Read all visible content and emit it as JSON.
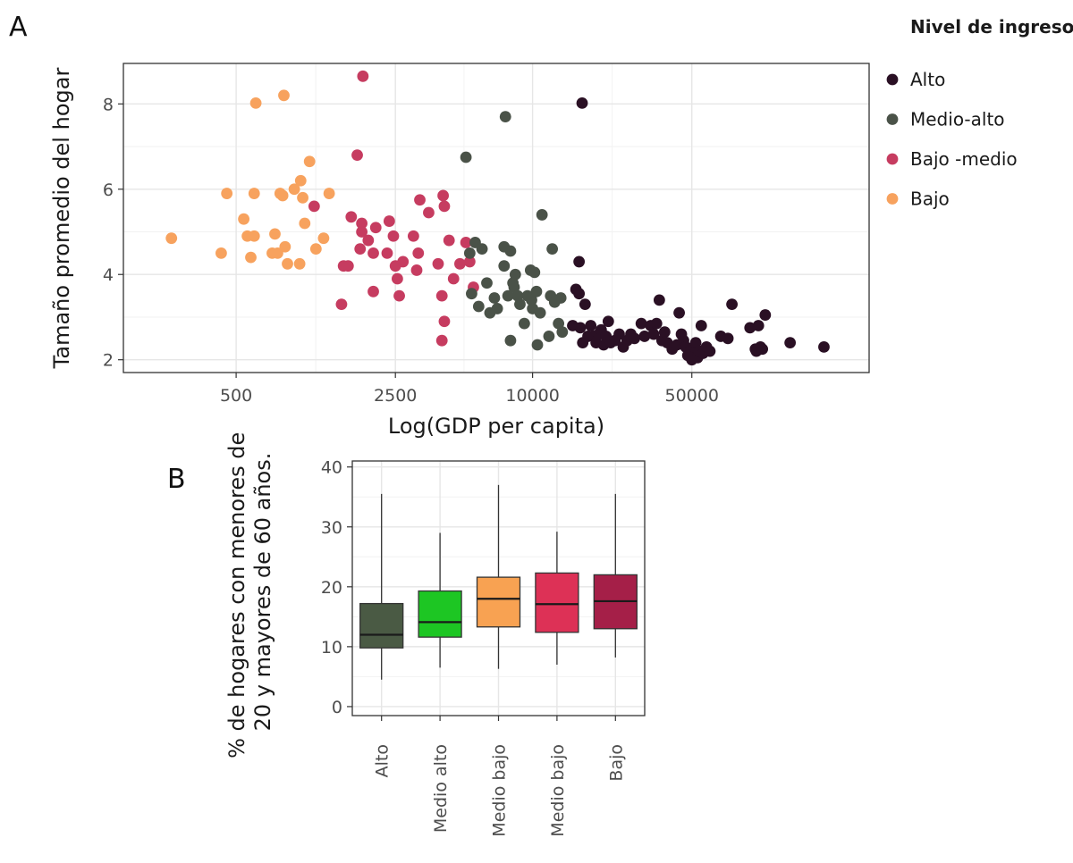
{
  "chart_data": [
    {
      "panel": "A",
      "type": "scatter",
      "title": "",
      "xlabel": "Log(GDP per capita)",
      "ylabel": "Tamaño promedio del hogar",
      "x_scale": "log",
      "x_ticks": [
        500,
        2500,
        10000,
        50000
      ],
      "x_tick_labels": [
        "500",
        "2500",
        "10000",
        "50000"
      ],
      "y_ticks": [
        2,
        4,
        6,
        8
      ],
      "y_tick_labels": [
        "2",
        "4",
        "6",
        "8"
      ],
      "xlim": [
        160,
        300000
      ],
      "ylim": [
        1.7,
        8.95
      ],
      "grid": true,
      "legend": {
        "title": "Nivel de ingreso",
        "position": "right",
        "entries": [
          {
            "label": "Alto",
            "color": "#2a1024"
          },
          {
            "label": "Medio-alto",
            "color": "#4a5248"
          },
          {
            "label": "Bajo -medio",
            "color": "#c63c60"
          },
          {
            "label": "Bajo",
            "color": "#f7a25e"
          }
        ]
      },
      "series": [
        {
          "name": "Bajo",
          "color": "#f7a25e",
          "points": [
            [
              260,
              4.85
            ],
            [
              430,
              4.5
            ],
            [
              455,
              5.9
            ],
            [
              540,
              5.3
            ],
            [
              560,
              4.9
            ],
            [
              580,
              4.4
            ],
            [
              600,
              4.9
            ],
            [
              600,
              5.9
            ],
            [
              610,
              8.02
            ],
            [
              720,
              4.5
            ],
            [
              740,
              4.95
            ],
            [
              760,
              4.5
            ],
            [
              800,
              5.85
            ],
            [
              780,
              5.9
            ],
            [
              810,
              8.2
            ],
            [
              820,
              4.65
            ],
            [
              840,
              4.25
            ],
            [
              900,
              6.0
            ],
            [
              950,
              4.25
            ],
            [
              960,
              6.2
            ],
            [
              980,
              5.8
            ],
            [
              1000,
              5.2
            ],
            [
              1050,
              6.65
            ],
            [
              1120,
              4.6
            ],
            [
              1210,
              4.85
            ],
            [
              1280,
              5.9
            ]
          ]
        },
        {
          "name": "Bajo -medio",
          "color": "#c63c60",
          "points": [
            [
              1100,
              5.6
            ],
            [
              1450,
              3.3
            ],
            [
              1480,
              4.2
            ],
            [
              1550,
              4.2
            ],
            [
              1600,
              5.35
            ],
            [
              1700,
              6.8
            ],
            [
              1750,
              4.6
            ],
            [
              1780,
              5.2
            ],
            [
              1800,
              8.65
            ],
            [
              1780,
              5.0
            ],
            [
              1900,
              4.8
            ],
            [
              2000,
              4.5
            ],
            [
              2000,
              3.6
            ],
            [
              2050,
              5.1
            ],
            [
              2300,
              4.5
            ],
            [
              2350,
              5.25
            ],
            [
              2450,
              4.9
            ],
            [
              2500,
              4.2
            ],
            [
              2550,
              3.9
            ],
            [
              2600,
              3.5
            ],
            [
              2700,
              4.3
            ],
            [
              3000,
              4.9
            ],
            [
              3100,
              4.1
            ],
            [
              3150,
              4.5
            ],
            [
              3200,
              5.75
            ],
            [
              3500,
              5.45
            ],
            [
              3850,
              4.25
            ],
            [
              4000,
              3.5
            ],
            [
              4050,
              5.85
            ],
            [
              4100,
              5.6
            ],
            [
              4100,
              2.9
            ],
            [
              4000,
              2.45
            ],
            [
              4300,
              4.8
            ],
            [
              4500,
              3.9
            ],
            [
              4800,
              4.25
            ],
            [
              5100,
              4.75
            ],
            [
              5300,
              4.3
            ],
            [
              5500,
              3.7
            ]
          ]
        },
        {
          "name": "Medio-alto",
          "color": "#4a5248",
          "points": [
            [
              5100,
              6.75
            ],
            [
              5300,
              4.5
            ],
            [
              5400,
              3.55
            ],
            [
              5600,
              4.75
            ],
            [
              5800,
              3.25
            ],
            [
              6000,
              4.6
            ],
            [
              6300,
              3.8
            ],
            [
              6500,
              3.1
            ],
            [
              6800,
              3.45
            ],
            [
              7000,
              3.2
            ],
            [
              7500,
              4.65
            ],
            [
              7500,
              4.2
            ],
            [
              7600,
              7.7
            ],
            [
              7800,
              3.5
            ],
            [
              8000,
              4.55
            ],
            [
              8000,
              2.45
            ],
            [
              8200,
              3.8
            ],
            [
              8300,
              3.7
            ],
            [
              8400,
              4.0
            ],
            [
              8600,
              3.5
            ],
            [
              8800,
              3.3
            ],
            [
              9200,
              2.85
            ],
            [
              9500,
              3.5
            ],
            [
              9800,
              4.1
            ],
            [
              9900,
              3.4
            ],
            [
              10000,
              3.2
            ],
            [
              10200,
              4.05
            ],
            [
              10400,
              3.6
            ],
            [
              10800,
              3.1
            ],
            [
              11000,
              5.4
            ],
            [
              10500,
              2.35
            ],
            [
              11800,
              2.55
            ],
            [
              12000,
              3.5
            ],
            [
              12500,
              3.35
            ],
            [
              12200,
              4.6
            ],
            [
              13000,
              2.85
            ],
            [
              13300,
              3.45
            ],
            [
              13500,
              2.65
            ]
          ]
        },
        {
          "name": "Alto",
          "color": "#2a1024",
          "points": [
            [
              15000,
              2.8
            ],
            [
              15500,
              3.65
            ],
            [
              16000,
              3.55
            ],
            [
              16000,
              4.3
            ],
            [
              16500,
              8.02
            ],
            [
              16200,
              2.75
            ],
            [
              16600,
              2.4
            ],
            [
              17000,
              3.3
            ],
            [
              17500,
              2.55
            ],
            [
              18000,
              2.8
            ],
            [
              18500,
              2.55
            ],
            [
              19000,
              2.4
            ],
            [
              19500,
              2.6
            ],
            [
              20000,
              2.7
            ],
            [
              20500,
              2.35
            ],
            [
              21000,
              2.55
            ],
            [
              21500,
              2.9
            ],
            [
              22000,
              2.4
            ],
            [
              23000,
              2.45
            ],
            [
              24000,
              2.6
            ],
            [
              25000,
              2.3
            ],
            [
              26000,
              2.45
            ],
            [
              27000,
              2.6
            ],
            [
              28000,
              2.5
            ],
            [
              30000,
              2.85
            ],
            [
              31000,
              2.55
            ],
            [
              33000,
              2.8
            ],
            [
              34000,
              2.6
            ],
            [
              35000,
              2.85
            ],
            [
              36000,
              3.4
            ],
            [
              37000,
              2.45
            ],
            [
              38000,
              2.65
            ],
            [
              39000,
              2.4
            ],
            [
              41000,
              2.25
            ],
            [
              43000,
              2.35
            ],
            [
              44000,
              3.1
            ],
            [
              45000,
              2.6
            ],
            [
              46000,
              2.45
            ],
            [
              47000,
              2.3
            ],
            [
              48000,
              2.1
            ],
            [
              49000,
              2.2
            ],
            [
              50000,
              2.0
            ],
            [
              51000,
              2.3
            ],
            [
              52000,
              2.4
            ],
            [
              53000,
              2.05
            ],
            [
              54000,
              2.2
            ],
            [
              55000,
              2.8
            ],
            [
              56000,
              2.15
            ],
            [
              58000,
              2.3
            ],
            [
              60000,
              2.2
            ],
            [
              67000,
              2.55
            ],
            [
              72000,
              2.5
            ],
            [
              75000,
              3.3
            ],
            [
              90000,
              2.75
            ],
            [
              95000,
              2.25
            ],
            [
              96000,
              2.2
            ],
            [
              98000,
              2.8
            ],
            [
              100000,
              2.3
            ],
            [
              102000,
              2.25
            ],
            [
              105000,
              3.05
            ],
            [
              135000,
              2.4
            ],
            [
              190000,
              2.3
            ]
          ]
        }
      ]
    },
    {
      "panel": "B",
      "type": "box",
      "title": "",
      "xlabel": "",
      "ylabel_lines": [
        "% de hogares con menores de",
        "20 y mayores de 60 años."
      ],
      "categories": [
        "Alto",
        "Medio alto",
        "Medio bajo",
        "Medio bajo",
        "Bajo"
      ],
      "colors": [
        "#4a5a44",
        "#1dc623",
        "#f8a252",
        "#dd3156",
        "#a51f48"
      ],
      "ylim": [
        -1.5,
        41
      ],
      "y_ticks": [
        0,
        10,
        20,
        30,
        40
      ],
      "y_tick_labels": [
        "0",
        "10",
        "20",
        "30",
        "40"
      ],
      "grid": true,
      "boxes": [
        {
          "min": 4.5,
          "q1": 9.8,
          "median": 12.0,
          "q3": 17.2,
          "max": 35.5
        },
        {
          "min": 6.5,
          "q1": 11.6,
          "median": 14.1,
          "q3": 19.3,
          "max": 29.0
        },
        {
          "min": 6.3,
          "q1": 13.3,
          "median": 18.0,
          "q3": 21.6,
          "max": 37.0
        },
        {
          "min": 7.0,
          "q1": 12.4,
          "median": 17.1,
          "q3": 22.3,
          "max": 29.2
        },
        {
          "min": 8.2,
          "q1": 13.0,
          "median": 17.6,
          "q3": 22.0,
          "max": 35.5
        }
      ]
    }
  ],
  "labels": {
    "panel_a": "A",
    "panel_b": "B"
  }
}
